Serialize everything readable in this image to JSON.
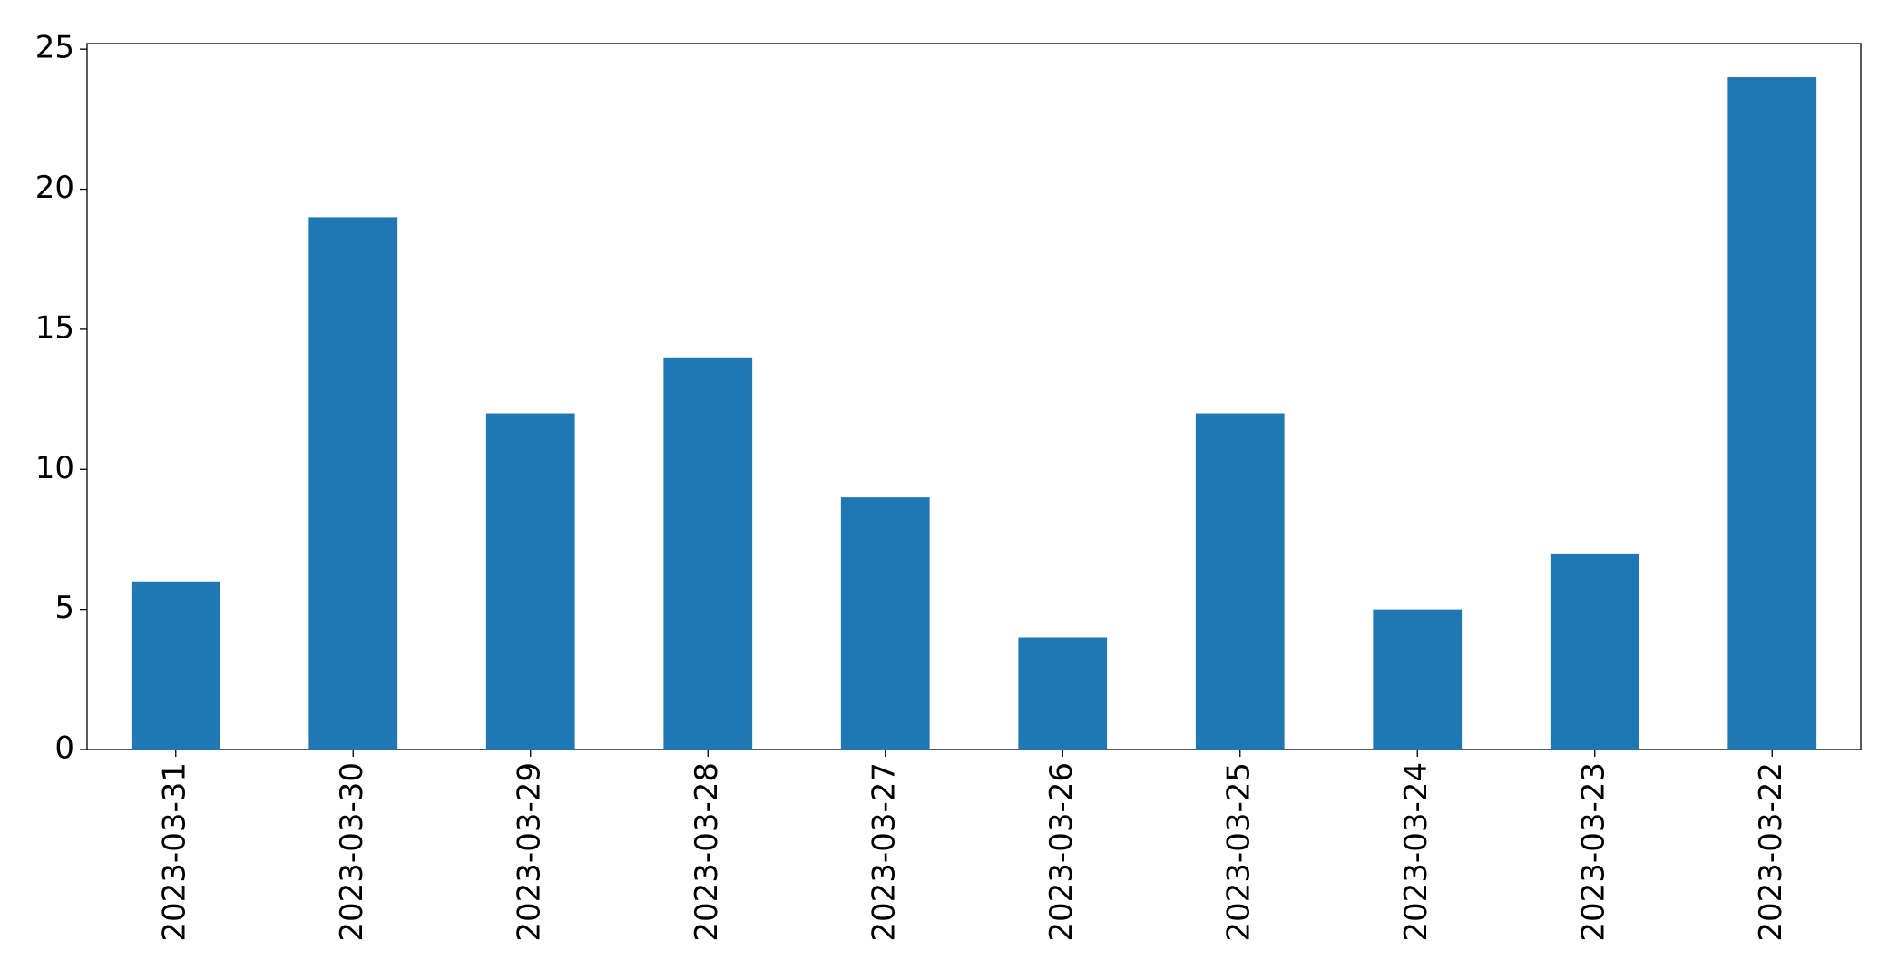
{
  "chart_data": {
    "type": "bar",
    "categories": [
      "2023-03-31",
      "2023-03-30",
      "2023-03-29",
      "2023-03-28",
      "2023-03-27",
      "2023-03-26",
      "2023-03-25",
      "2023-03-24",
      "2023-03-23",
      "2023-03-22"
    ],
    "values": [
      6,
      19,
      12,
      14,
      9,
      4,
      12,
      5,
      7,
      24
    ],
    "color": "#1f77b4",
    "ylim": [
      0,
      25.2
    ],
    "yticks": [
      0,
      5,
      10,
      15,
      20,
      25
    ],
    "grid": false
  }
}
